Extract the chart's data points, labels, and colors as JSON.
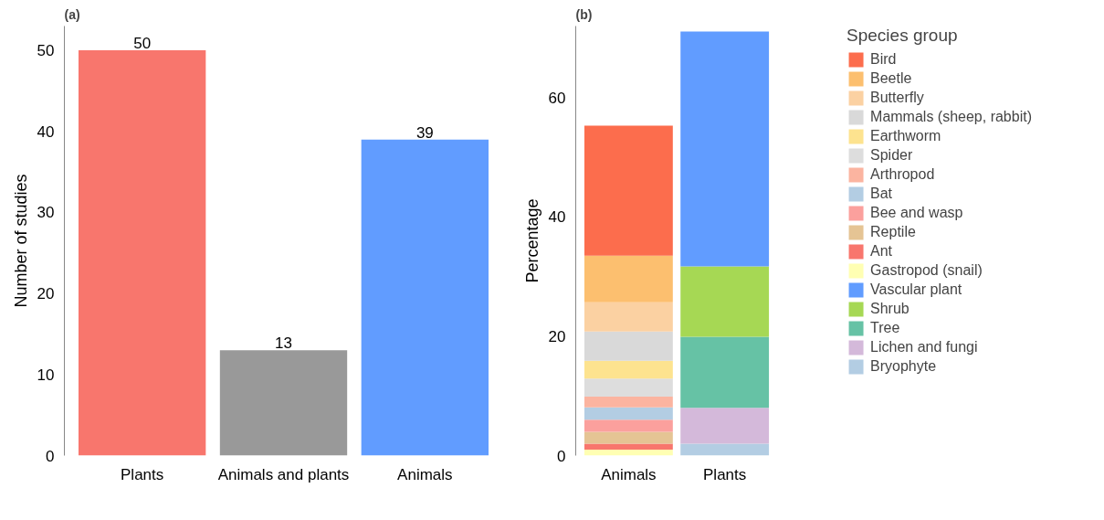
{
  "chart_data": [
    {
      "type": "bar",
      "title": "(a)",
      "ylabel": "Number of studies",
      "categories": [
        "Plants",
        "Animals and plants",
        "Animals"
      ],
      "values": [
        50,
        13,
        39
      ],
      "colors": [
        "#f8766d",
        "#999999",
        "#619cff"
      ],
      "data_labels": true,
      "ylim": [
        0,
        53
      ],
      "yticks": [
        0,
        10,
        20,
        30,
        40,
        50
      ],
      "grid": false
    },
    {
      "type": "bar",
      "title": "(b)",
      "ylabel": "Percentage",
      "legend_title": "Species group",
      "categories": [
        "Animals",
        "Plants"
      ],
      "stacked": true,
      "ylim": [
        0,
        72
      ],
      "yticks": [
        0,
        20,
        40,
        60
      ],
      "grid": false,
      "legend": "right",
      "series": [
        {
          "name": "Gastropod (snail)",
          "color": "#ffffb3",
          "values": [
            1.0,
            null
          ]
        },
        {
          "name": "Ant",
          "color": "#f8766d",
          "values": [
            1.0,
            null
          ]
        },
        {
          "name": "Reptile",
          "color": "#e5c494",
          "values": [
            2.0,
            null
          ]
        },
        {
          "name": "Bee and wasp",
          "color": "#fba09d",
          "values": [
            2.0,
            null
          ]
        },
        {
          "name": "Bat",
          "color": "#b3cde3",
          "values": [
            2.1,
            null
          ]
        },
        {
          "name": "Arthropod",
          "color": "#fbb4a0",
          "values": [
            1.8,
            null
          ]
        },
        {
          "name": "Spider",
          "color": "#dddddd",
          "values": [
            3.0,
            null
          ]
        },
        {
          "name": "Earthworm",
          "color": "#fde38f",
          "values": [
            3.0,
            null
          ]
        },
        {
          "name": "Mammals (sheep, rabbit)",
          "color": "#d9d9d9",
          "values": [
            4.9,
            null
          ]
        },
        {
          "name": "Butterfly",
          "color": "#fbd1a2",
          "values": [
            4.9,
            null
          ]
        },
        {
          "name": "Beetle",
          "color": "#fcbf6f",
          "values": [
            7.8,
            null
          ]
        },
        {
          "name": "Bird",
          "color": "#fc6d4d",
          "values": [
            21.8,
            null
          ]
        },
        {
          "name": "Bryophyte",
          "color": "#b3cde3",
          "values": [
            null,
            2.0
          ]
        },
        {
          "name": "Lichen and fungi",
          "color": "#d4b9da",
          "values": [
            null,
            6.0
          ]
        },
        {
          "name": "Tree",
          "color": "#66c2a5",
          "values": [
            null,
            11.9
          ]
        },
        {
          "name": "Shrub",
          "color": "#a6d854",
          "values": [
            null,
            11.8
          ]
        },
        {
          "name": "Vascular plant",
          "color": "#619cff",
          "values": [
            null,
            39.4
          ]
        }
      ]
    }
  ]
}
